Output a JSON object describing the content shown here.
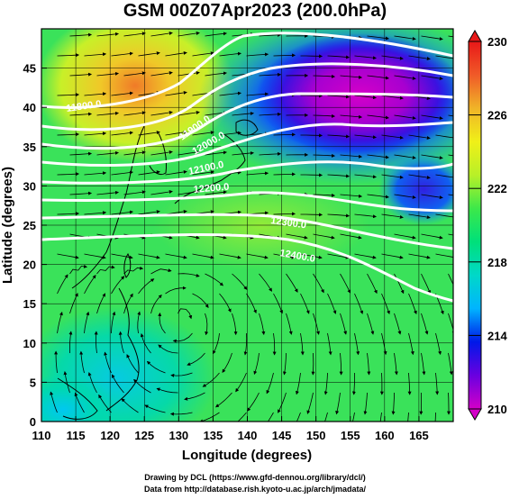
{
  "title": "GSM 00Z07Apr2023 (200.0hPa)",
  "x_axis": {
    "label": "Longitude (degrees)",
    "ticks": [
      "110",
      "115",
      "120",
      "125",
      "130",
      "135",
      "140",
      "145",
      "150",
      "155",
      "160",
      "165"
    ],
    "range": [
      110,
      170
    ]
  },
  "y_axis": {
    "label": "Latitude  (degrees)",
    "ticks": [
      "0",
      "5",
      "10",
      "15",
      "20",
      "25",
      "30",
      "35",
      "40",
      "45"
    ],
    "range": [
      0,
      50
    ]
  },
  "colorbar": {
    "ticks": [
      "210",
      "214",
      "218",
      "222",
      "226",
      "230"
    ],
    "range": [
      210,
      230
    ],
    "colors": [
      "#d400c8",
      "#6a00e0",
      "#0018e8",
      "#00b4ff",
      "#00d8c8",
      "#00e07a",
      "#3ce84a",
      "#b8f028",
      "#f0f018",
      "#f0b428",
      "#f05a28",
      "#e81818"
    ]
  },
  "contour_labels": [
    "11800.0",
    "11900.0",
    "12000.0",
    "12100.0",
    "12200.0",
    "12300.0",
    "12400.0"
  ],
  "credit": {
    "line1": "Drawing by DCL (https://www.gfd-dennou.org/library/dcl/)",
    "line2": "Data from http://database.rish.kyoto-u.ac.jp/arch/jmadata/"
  }
}
